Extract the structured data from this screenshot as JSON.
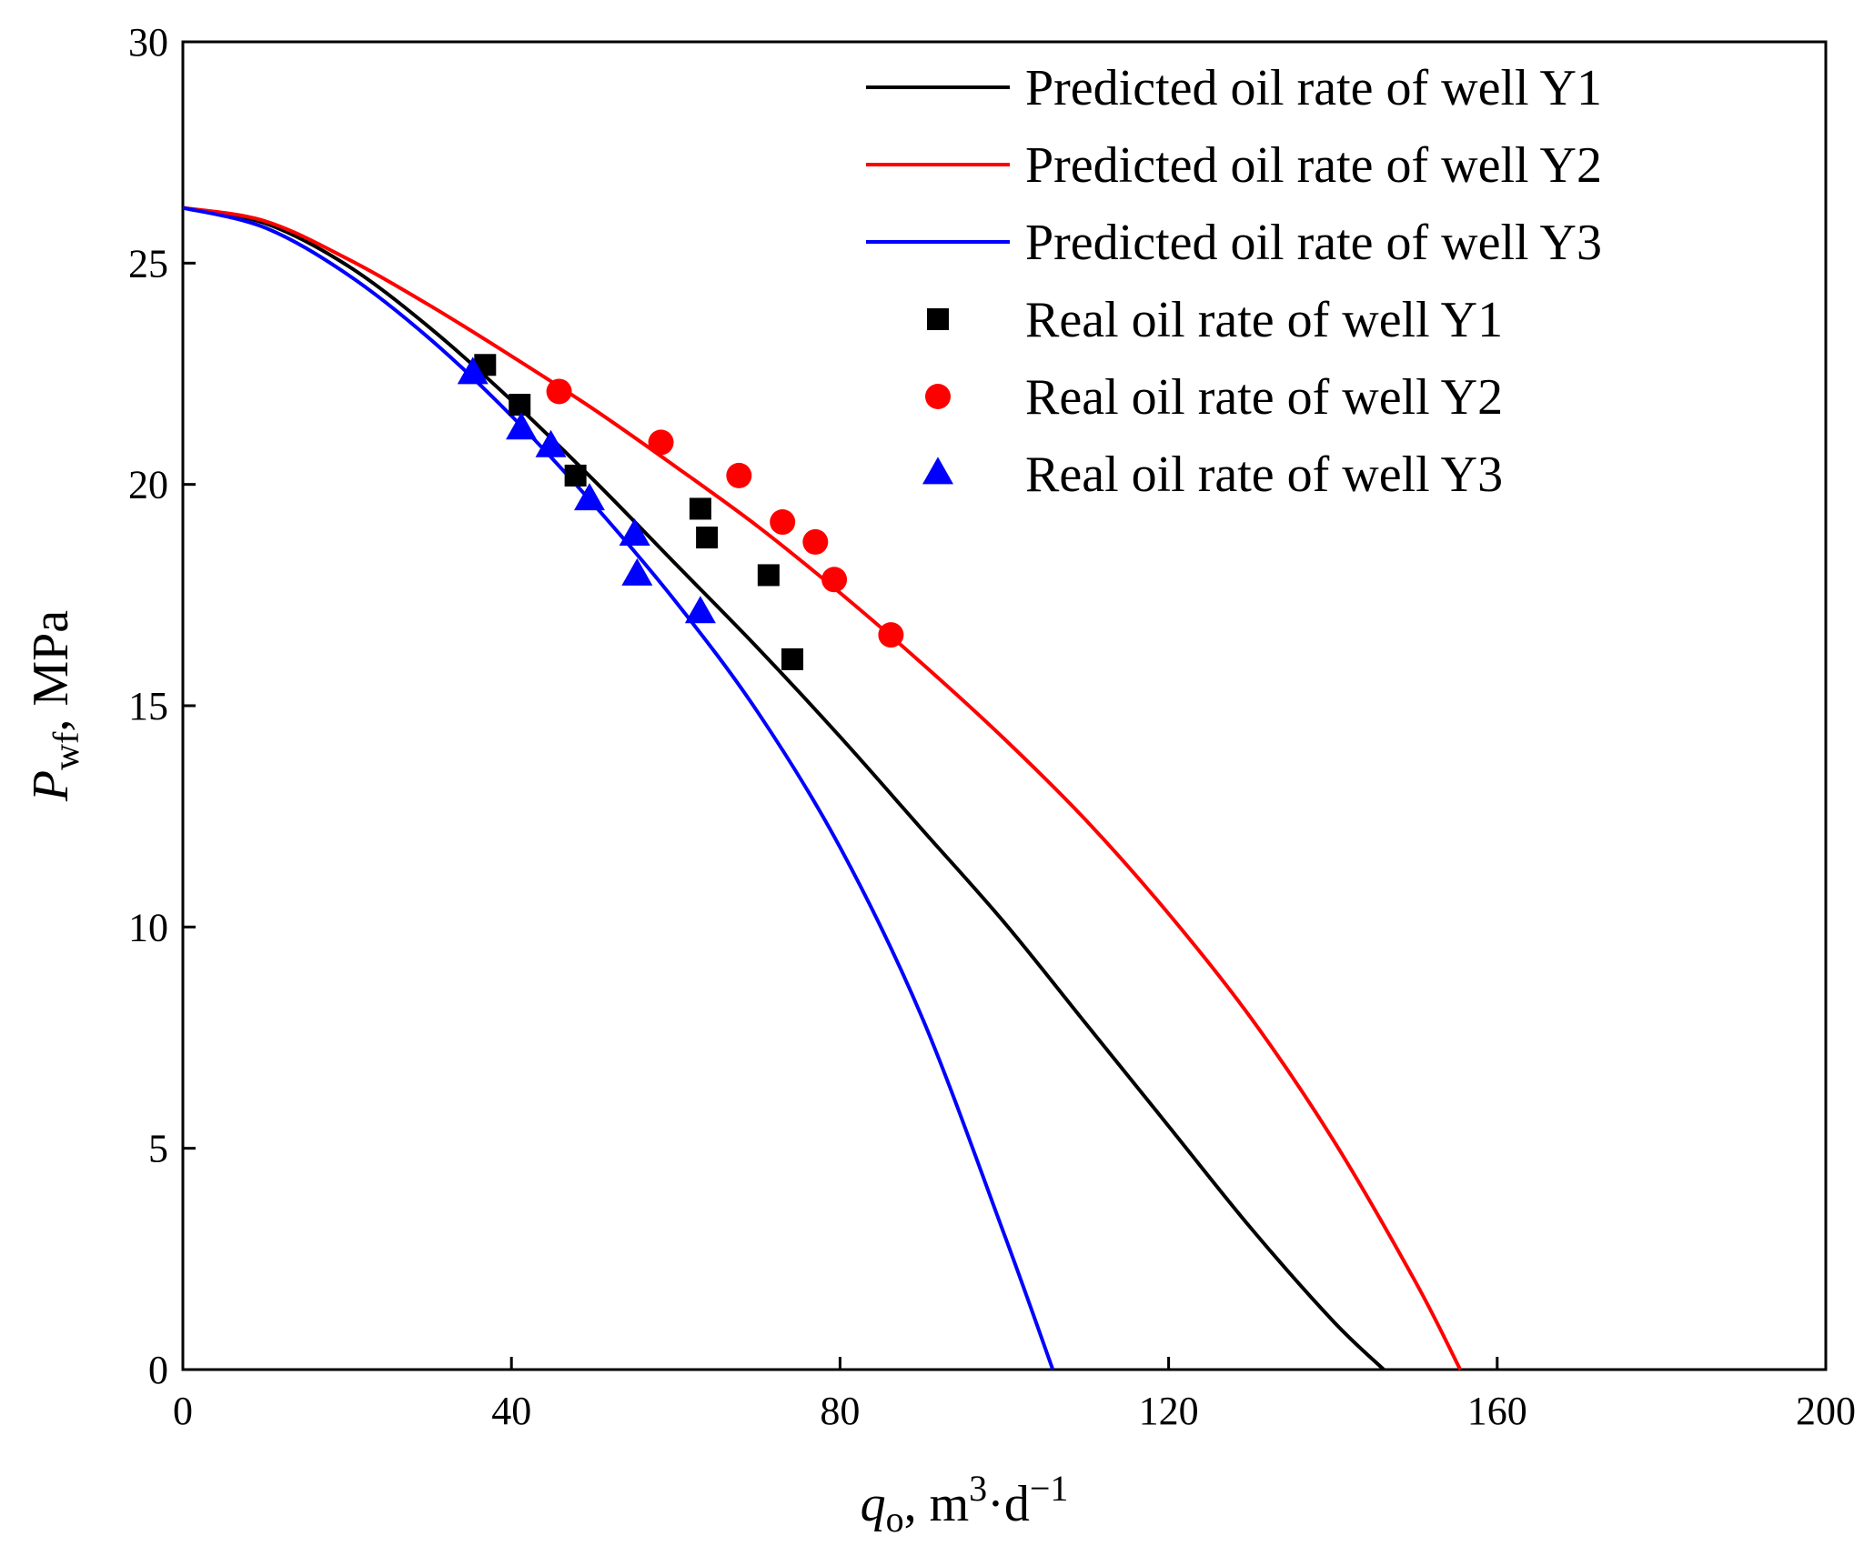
{
  "chart_data": {
    "type": "line",
    "xlim": [
      0,
      200
    ],
    "ylim": [
      0,
      30
    ],
    "x_ticks": [
      0,
      40,
      80,
      120,
      160,
      200
    ],
    "y_ticks": [
      0,
      5,
      10,
      15,
      20,
      25,
      30
    ],
    "x_tick_labels": [
      "0",
      "40",
      "80",
      "120",
      "160",
      "200"
    ],
    "y_tick_labels": [
      "0",
      "5",
      "10",
      "15",
      "20",
      "25",
      "30"
    ],
    "xlabel": {
      "main": "q",
      "sub": "o",
      "rest": ", m",
      "sup1": "3",
      "mid": "·d",
      "sup2": "−1"
    },
    "ylabel": {
      "main": "P",
      "sub": "wf",
      "rest": ", MPa"
    },
    "grid": false,
    "legend_position": "top-right",
    "series": [
      {
        "name": "Predicted oil rate of well Y1",
        "kind": "line",
        "color": "#000000",
        "x": [
          0,
          10,
          20,
          30,
          40,
          50,
          60,
          70,
          80,
          90,
          100,
          110,
          120,
          130,
          140,
          146.2
        ],
        "y": [
          26.25,
          25.9,
          24.95,
          23.55,
          21.9,
          20.1,
          18.2,
          16.3,
          14.3,
          12.2,
          10.1,
          7.8,
          5.5,
          3.2,
          1.1,
          0
        ]
      },
      {
        "name": "Predicted oil rate of well Y2",
        "kind": "line",
        "color": "#ff0000",
        "x": [
          0,
          10,
          20,
          30,
          40,
          50,
          60,
          70,
          80,
          90,
          100,
          110,
          120,
          130,
          140,
          150,
          155.5
        ],
        "y": [
          26.25,
          25.95,
          25.1,
          24.05,
          22.9,
          21.7,
          20.4,
          19.05,
          17.55,
          15.95,
          14.25,
          12.4,
          10.3,
          7.95,
          5.2,
          2.0,
          0
        ]
      },
      {
        "name": "Predicted oil rate of well Y3",
        "kind": "line",
        "color": "#0000ff",
        "x": [
          0,
          10,
          20,
          30,
          40,
          50,
          60,
          70,
          80,
          90,
          100,
          105.9
        ],
        "y": [
          26.25,
          25.8,
          24.75,
          23.3,
          21.55,
          19.55,
          17.35,
          14.85,
          11.8,
          7.95,
          3.05,
          0
        ]
      },
      {
        "name": "Real oil rate of well Y1",
        "kind": "scatter",
        "marker": "square",
        "color": "#000000",
        "x": [
          36.8,
          41.0,
          47.8,
          63.0,
          63.8,
          71.3,
          74.2
        ],
        "y": [
          22.7,
          21.8,
          20.2,
          19.45,
          18.8,
          17.95,
          16.05
        ]
      },
      {
        "name": "Real oil rate of well Y2",
        "kind": "scatter",
        "marker": "circle",
        "color": "#ff0000",
        "x": [
          45.8,
          58.2,
          67.7,
          73.0,
          77.0,
          79.3,
          86.2
        ],
        "y": [
          22.1,
          20.95,
          20.2,
          19.15,
          18.7,
          17.85,
          16.6
        ]
      },
      {
        "name": "Real oil rate of well Y3",
        "kind": "scatter",
        "marker": "triangle",
        "color": "#0000ff",
        "x": [
          35.3,
          41.2,
          44.8,
          49.5,
          55.0,
          55.3,
          63.0
        ],
        "y": [
          22.5,
          21.25,
          20.85,
          19.65,
          18.85,
          17.95,
          17.1
        ]
      }
    ]
  }
}
